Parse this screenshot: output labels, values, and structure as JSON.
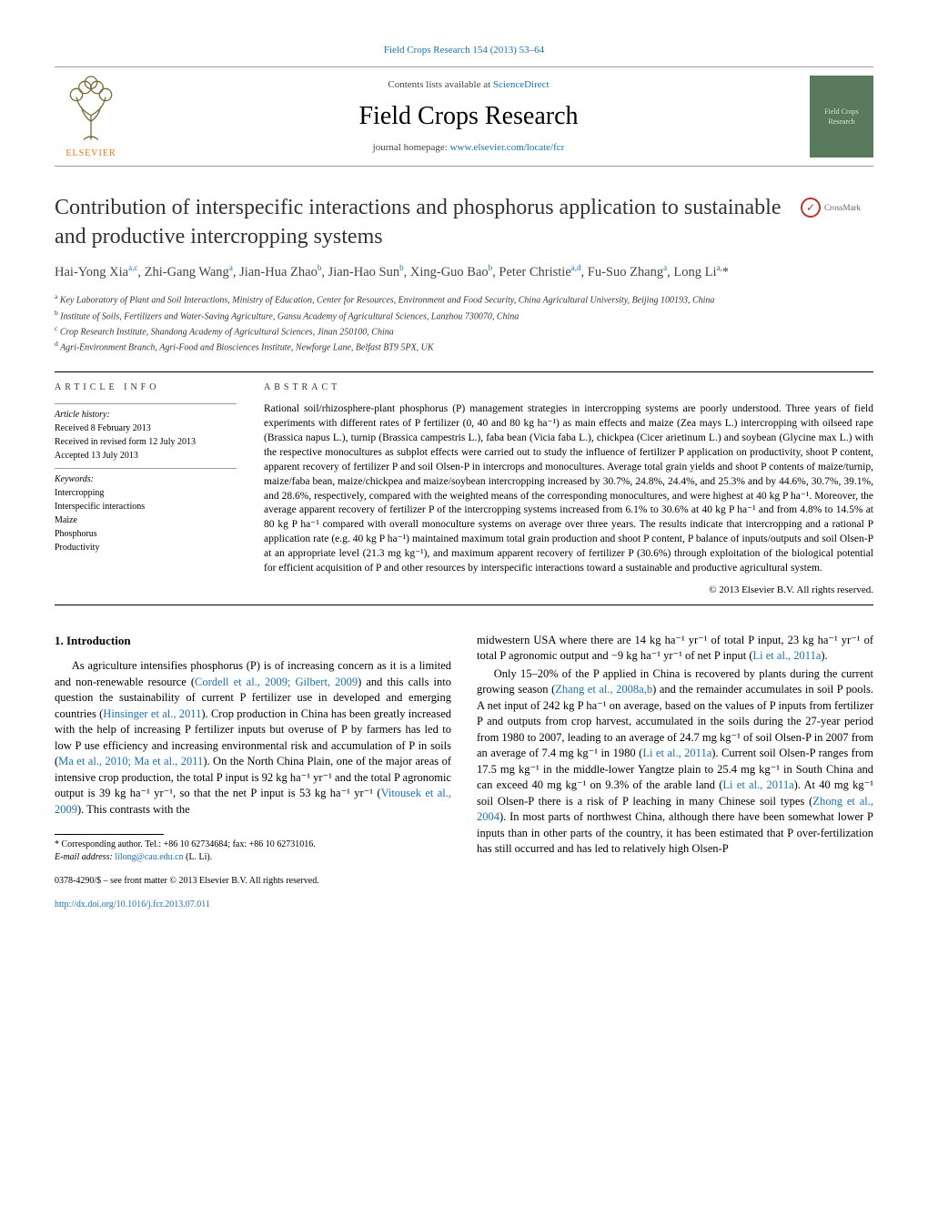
{
  "header": {
    "citation": "Field Crops Research 154 (2013) 53–64",
    "contents_prefix": "Contents lists available at ",
    "contents_link": "ScienceDirect",
    "journal_title": "Field Crops Research",
    "homepage_prefix": "journal homepage: ",
    "homepage_url": "www.elsevier.com/locate/fcr",
    "publisher_name": "ELSEVIER",
    "cover_text": "Field Crops Research"
  },
  "crossmark": {
    "label": "CrossMark"
  },
  "article": {
    "title": "Contribution of interspecific interactions and phosphorus application to sustainable and productive intercropping systems",
    "authors_html": "Hai-Yong Xia<sup>a,c</sup>, Zhi-Gang Wang<sup>a</sup>, Jian-Hua Zhao<sup>b</sup>, Jian-Hao Sun<sup>b</sup>, Xing-Guo Bao<sup>b</sup>, Peter Christie<sup>a,d</sup>, Fu-Suo Zhang<sup>a</sup>, Long Li<sup>a,</sup>*",
    "affiliations": [
      "a Key Laboratory of Plant and Soil Interactions, Ministry of Education, Center for Resources, Environment and Food Security, China Agricultural University, Beijing 100193, China",
      "b Institute of Soils, Fertilizers and Water-Saving Agriculture, Gansu Academy of Agricultural Sciences, Lanzhou 730070, China",
      "c Crop Research Institute, Shandong Academy of Agricultural Sciences, Jinan 250100, China",
      "d Agri-Environment Branch, Agri-Food and Biosciences Institute, Newforge Lane, Belfast BT9 5PX, UK"
    ]
  },
  "info": {
    "heading": "article info",
    "history_label": "Article history:",
    "received": "Received 8 February 2013",
    "revised": "Received in revised form 12 July 2013",
    "accepted": "Accepted 13 July 2013",
    "keywords_label": "Keywords:",
    "keywords": [
      "Intercropping",
      "Interspecific interactions",
      "Maize",
      "Phosphorus",
      "Productivity"
    ]
  },
  "abstract": {
    "heading": "abstract",
    "text": "Rational soil/rhizosphere-plant phosphorus (P) management strategies in intercropping systems are poorly understood. Three years of field experiments with different rates of P fertilizer (0, 40 and 80 kg ha⁻¹) as main effects and maize (Zea mays L.) intercropping with oilseed rape (Brassica napus L.), turnip (Brassica campestris L.), faba bean (Vicia faba L.), chickpea (Cicer arietinum L.) and soybean (Glycine max L.) with the respective monocultures as subplot effects were carried out to study the influence of fertilizer P application on productivity, shoot P content, apparent recovery of fertilizer P and soil Olsen-P in intercrops and monocultures. Average total grain yields and shoot P contents of maize/turnip, maize/faba bean, maize/chickpea and maize/soybean intercropping increased by 30.7%, 24.8%, 24.4%, and 25.3% and by 44.6%, 30.7%, 39.1%, and 28.6%, respectively, compared with the weighted means of the corresponding monocultures, and were highest at 40 kg P ha⁻¹. Moreover, the average apparent recovery of fertilizer P of the intercropping systems increased from 6.1% to 30.6% at 40 kg P ha⁻¹ and from 4.8% to 14.5% at 80 kg P ha⁻¹ compared with overall monoculture systems on average over three years. The results indicate that intercropping and a rational P application rate (e.g. 40 kg P ha⁻¹) maintained maximum total grain production and shoot P content, P balance of inputs/outputs and soil Olsen-P at an appropriate level (21.3 mg kg⁻¹), and maximum apparent recovery of fertilizer P (30.6%) through exploitation of the biological potential for efficient acquisition of P and other resources by interspecific interactions toward a sustainable and productive agricultural system.",
    "copyright": "© 2013 Elsevier B.V. All rights reserved."
  },
  "body": {
    "section_heading": "1.  Introduction",
    "col1_p1_pre": "As agriculture intensifies phosphorus (P) is of increasing concern as it is a limited and non-renewable resource (",
    "col1_ref1": "Cordell et al., 2009; Gilbert, 2009",
    "col1_p1_mid1": ") and this calls into question the sustainability of current P fertilizer use in developed and emerging countries (",
    "col1_ref2": "Hinsinger et al., 2011",
    "col1_p1_mid2": "). Crop production in China has been greatly increased with the help of increasing P fertilizer inputs but overuse of P by farmers has led to low P use efficiency and increasing environmental risk and accumulation of P in soils (",
    "col1_ref3": "Ma et al., 2010; Ma et al., 2011",
    "col1_p1_mid3": "). On the North China Plain, one of the major areas of intensive crop production, the total P input is 92 kg ha⁻¹ yr⁻¹ and the total P agronomic output is 39 kg ha⁻¹ yr⁻¹, so that the net P input is 53 kg ha⁻¹ yr⁻¹ (",
    "col1_ref4": "Vitousek et al., 2009",
    "col1_p1_end": "). This contrasts with the",
    "col2_p1_pre": "midwestern USA where there are 14 kg ha⁻¹ yr⁻¹ of total P input, 23 kg ha⁻¹ yr⁻¹ of total P agronomic output and −9 kg ha⁻¹ yr⁻¹ of net P input (",
    "col2_ref1": "Li et al., 2011a",
    "col2_p1_end": ").",
    "col2_p2_pre": "Only 15–20% of the P applied in China is recovered by plants during the current growing season (",
    "col2_ref2": "Zhang et al., 2008a,b",
    "col2_p2_mid1": ") and the remainder accumulates in soil P pools. A net input of 242 kg P ha⁻¹ on average, based on the values of P inputs from fertilizer P and outputs from crop harvest, accumulated in the soils during the 27-year period from 1980 to 2007, leading to an average of 24.7 mg kg⁻¹ of soil Olsen-P in 2007 from an average of 7.4 mg kg⁻¹ in 1980 (",
    "col2_ref3": "Li et al., 2011a",
    "col2_p2_mid2": "). Current soil Olsen-P ranges from 17.5 mg kg⁻¹ in the middle-lower Yangtze plain to 25.4 mg kg⁻¹ in South China and can exceed 40 mg kg⁻¹ on 9.3% of the arable land (",
    "col2_ref4": "Li et al., 2011a",
    "col2_p2_mid3": "). At 40 mg kg⁻¹ soil Olsen-P there is a risk of P leaching in many Chinese soil types (",
    "col2_ref5": "Zhong et al., 2004",
    "col2_p2_end": "). In most parts of northwest China, although there have been somewhat lower P inputs than in other parts of the country, it has been estimated that P over-fertilization has still occurred and has led to relatively high Olsen-P"
  },
  "footnote": {
    "corr": "* Corresponding author. Tel.: +86 10 62734684; fax: +86 10 62731016.",
    "email_label": "E-mail address: ",
    "email": "lilong@cau.edu.cn",
    "email_suffix": " (L. Li)."
  },
  "bottom": {
    "issn": "0378-4290/$ – see front matter © 2013 Elsevier B.V. All rights reserved.",
    "doi": "http://dx.doi.org/10.1016/j.fcr.2013.07.011"
  },
  "colors": {
    "link": "#1a6fb5",
    "publisher": "#e67817",
    "cover_bg": "#5a7a5e"
  }
}
